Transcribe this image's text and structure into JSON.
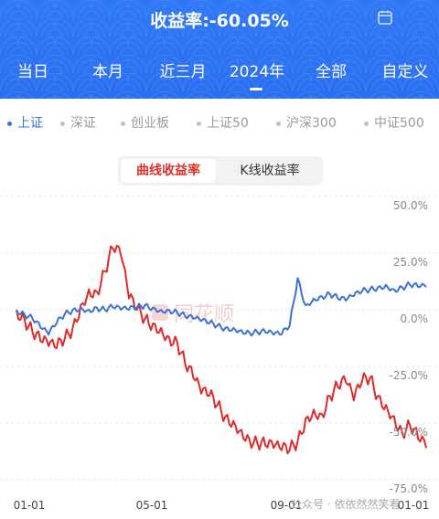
{
  "header": {
    "title": "收益率:-60.05%",
    "periods": [
      {
        "label": "当日"
      },
      {
        "label": "本月"
      },
      {
        "label": "近三月"
      },
      {
        "label": "2024年",
        "active": true
      },
      {
        "label": "全部"
      },
      {
        "label": "自定义"
      }
    ]
  },
  "indices": [
    {
      "label": "上证",
      "active": true
    },
    {
      "label": "深证"
    },
    {
      "label": "创业板"
    },
    {
      "label": "上证50"
    },
    {
      "label": "沪深300"
    },
    {
      "label": "中证500"
    }
  ],
  "toggle": {
    "curve_label": "曲线收益率",
    "kline_label": "K线收益率"
  },
  "colors": {
    "brand": "#2f78f6",
    "portfolio_line": "#e02a2a",
    "index_line": "#3a72d8"
  },
  "chart_data": {
    "type": "line",
    "y_unit": "%",
    "ylim": [
      -75,
      50
    ],
    "y_ticks": [
      "50.0%",
      "25.0%",
      "0.0%",
      "-25.0%",
      "-50.0%",
      "-75.0%"
    ],
    "x_ticks": [
      "01-01",
      "05-01",
      "09-01",
      "01-01"
    ],
    "x": [
      "01-01",
      "01-08",
      "01-15",
      "01-22",
      "01-29",
      "02-05",
      "02-19",
      "02-26",
      "03-04",
      "03-11",
      "03-18",
      "03-25",
      "04-01",
      "04-08",
      "04-15",
      "04-22",
      "04-29",
      "05-06",
      "05-13",
      "05-20",
      "05-27",
      "06-03",
      "06-10",
      "06-17",
      "06-24",
      "07-01",
      "07-08",
      "07-15",
      "07-22",
      "07-29",
      "08-05",
      "08-12",
      "08-19",
      "08-26",
      "09-02",
      "09-09",
      "09-16",
      "09-23",
      "09-30",
      "10-08",
      "10-15",
      "10-22",
      "10-29",
      "11-05",
      "11-12",
      "11-19",
      "11-26",
      "12-03",
      "12-10",
      "12-17",
      "12-24",
      "12-31"
    ],
    "series": [
      {
        "values": [
          0,
          -4,
          -10,
          -14,
          -16,
          -17,
          -13,
          -8,
          2,
          9,
          8,
          17,
          27,
          24,
          5,
          0,
          -4,
          -6,
          -8,
          -12,
          -14,
          -24,
          -30,
          -37,
          -38,
          -42,
          -47,
          -49,
          -53,
          -57,
          -59,
          -60,
          -61,
          -62,
          -62,
          -58,
          -48,
          -44,
          -46,
          -38,
          -34,
          -32,
          -40,
          -32,
          -30,
          -38,
          -42,
          -47,
          -54,
          -51,
          -57,
          -61
        ]
      },
      {
        "values": [
          0,
          -2,
          -4,
          -8,
          -11,
          -6,
          -2,
          0,
          1,
          0,
          1,
          0,
          1,
          0,
          0,
          1,
          2,
          1,
          0,
          0,
          -1,
          -3,
          -4,
          -5,
          -6,
          -7,
          -8,
          -8,
          -9,
          -10,
          -10,
          -10,
          -11,
          -11,
          -7,
          14,
          2,
          5,
          6,
          7,
          5,
          4,
          6,
          8,
          9,
          10,
          11,
          9,
          10,
          11,
          10,
          10
        ]
      }
    ]
  },
  "watermarks": {
    "logo": "同花顺",
    "footer": "公众号 · 依依然然笑看"
  }
}
